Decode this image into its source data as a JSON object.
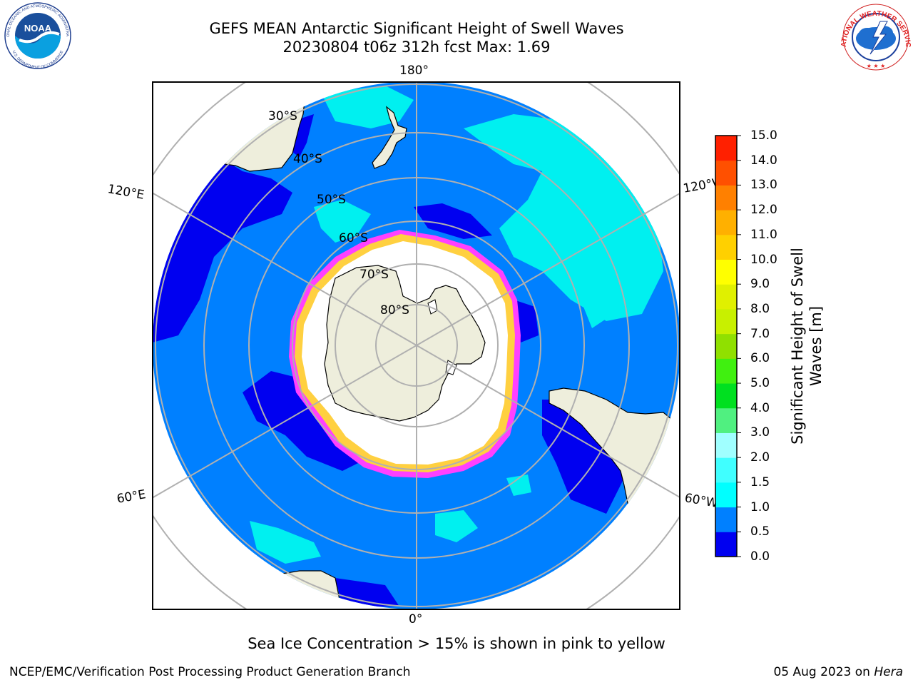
{
  "title": {
    "line1": "GEFS MEAN Antarctic Significant Height of Swell Waves",
    "line2": "20230804 t06z 312h fcst   Max: 1.69"
  },
  "map": {
    "projection": "south-polar-stereographic",
    "longitude_labels": [
      "180°",
      "120°E",
      "120°W",
      "60°E",
      "60°W",
      "0°"
    ],
    "latitude_labels": [
      "30°S",
      "40°S",
      "50°S",
      "60°S",
      "70°S",
      "80°S"
    ],
    "colors": {
      "ocean_dominant": "#0080ff",
      "low_swell": "#0000f0",
      "moderate_swell": "#00f0f0",
      "land": "#eeeedc",
      "sea_ice_pink": "#ff40ff",
      "sea_ice_yellow": "#ffd040",
      "sea_ice_interior": "#ffffff",
      "graticule": "#b0b0b0"
    }
  },
  "colorbar": {
    "label": "Significant Height of Swell Waves [m]",
    "ticks": [
      "0.0",
      "0.5",
      "1.0",
      "1.5",
      "2.0",
      "3.0",
      "4.0",
      "5.0",
      "6.0",
      "7.0",
      "8.0",
      "9.0",
      "10.0",
      "11.0",
      "12.0",
      "13.0",
      "14.0",
      "15.0"
    ],
    "colors": [
      "#0000f0",
      "#0080ff",
      "#00ffff",
      "#40ffff",
      "#a0ffff",
      "#50f080",
      "#00e020",
      "#40f010",
      "#90e000",
      "#c8f000",
      "#e0f000",
      "#ffff00",
      "#ffd000",
      "#ffb000",
      "#ff8000",
      "#ff5000",
      "#ff2000"
    ]
  },
  "caption": "Sea Ice Concentration > 15% is shown in pink to yellow",
  "footer": {
    "left": "NCEP/EMC/Verification Post Processing Product Generation Branch",
    "date": "05 Aug 2023 on",
    "host": "Hera"
  },
  "logos": {
    "noaa": "NOAA",
    "noaa_ring": "NATIONAL OCEANIC AND ATMOSPHERIC ADMINISTRATION",
    "noaa_bottom": "U.S. DEPARTMENT OF COMMERCE",
    "nws_ring": "NATIONAL WEATHER SERVICE"
  }
}
